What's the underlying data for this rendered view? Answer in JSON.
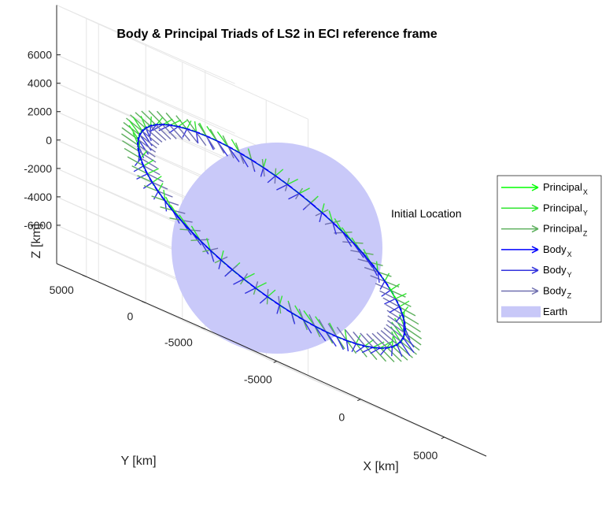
{
  "chart_data": {
    "type": "line",
    "title": "Body & Principal Triads of LS2 in ECI reference frame",
    "xlabel": "X [km]",
    "ylabel": "Y [km]",
    "zlabel": "Z [km]",
    "x_ticks": [
      "-5000",
      "0",
      "5000"
    ],
    "y_ticks": [
      "-5000",
      "0",
      "5000"
    ],
    "z_ticks": [
      "6000",
      "4000",
      "2000",
      "0",
      "-2000",
      "-4000",
      "-6000"
    ],
    "xlim": [
      -7500,
      7500
    ],
    "ylim": [
      -7500,
      7500
    ],
    "zlim": [
      -7000,
      7000
    ],
    "grid": true,
    "legend_placement": "right",
    "annotation": "Initial Location",
    "earth_radius": 6378,
    "orbit_radius": 7100,
    "orbit_inclination_deg": 45,
    "series": [
      {
        "name": "Principal",
        "sub": "X",
        "color": "#00ff00",
        "kind": "arrow"
      },
      {
        "name": "Principal",
        "sub": "Y",
        "color": "#33e633",
        "kind": "arrow"
      },
      {
        "name": "Principal",
        "sub": "Z",
        "color": "#5fb05f",
        "kind": "arrow"
      },
      {
        "name": "Body",
        "sub": "X",
        "color": "#0000ff",
        "kind": "arrow"
      },
      {
        "name": "Body",
        "sub": "Y",
        "color": "#3333dd",
        "kind": "arrow"
      },
      {
        "name": "Body",
        "sub": "Z",
        "color": "#7070b0",
        "kind": "arrow"
      },
      {
        "name": "Earth",
        "sub": "",
        "color": "#c8c8f8",
        "kind": "patch"
      }
    ]
  }
}
